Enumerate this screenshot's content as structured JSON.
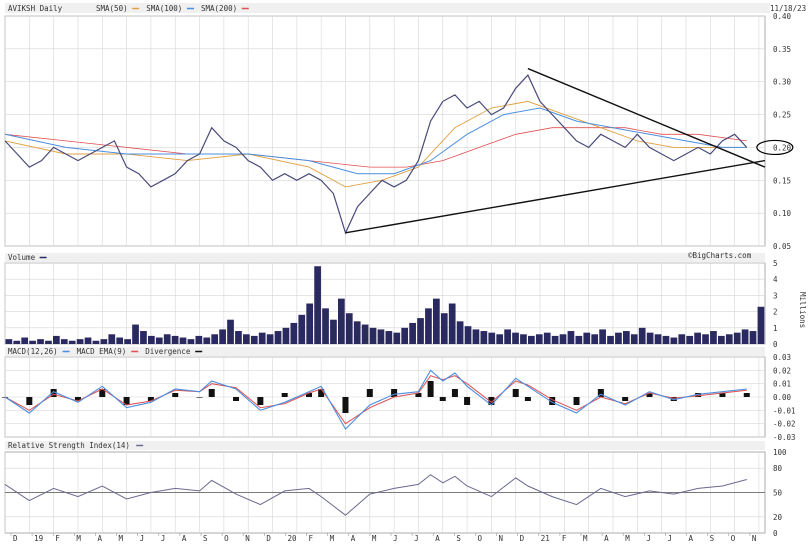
{
  "header": {
    "symbol_label": "AVIKSH Daily",
    "date": "11/18/23",
    "watermark": "©BigCharts.com"
  },
  "colors": {
    "price": "#4a4a7a",
    "sma50": "#e0a040",
    "sma100": "#4b8fe0",
    "sma200": "#e05050",
    "volume": "#2a2a60",
    "macd": "#4b8fe0",
    "macd_ema": "#e05050",
    "divergence": "#111111",
    "rsi": "#6a6a90",
    "trendline": "#111111",
    "grid": "#d6d6d6"
  },
  "chart_data": [
    {
      "type": "line",
      "panel": "price",
      "legend": [
        "AVIKSH Daily",
        "SMA(50)",
        "SMA(100)",
        "SMA(200)"
      ],
      "ylim": [
        0.05,
        0.4
      ],
      "yticks": [
        "0.40",
        "0.35",
        "0.30",
        "0.25",
        "0.20",
        "0.15",
        "0.10",
        "0.05"
      ],
      "x_labels": [
        "D",
        "19",
        "F",
        "M",
        "A",
        "M",
        "J",
        "J",
        "A",
        "S",
        "O",
        "N",
        "D",
        "20",
        "F",
        "M",
        "A",
        "M",
        "J",
        "J",
        "A",
        "S",
        "O",
        "N",
        "D",
        "21",
        "F",
        "M",
        "A",
        "M",
        "J",
        "J",
        "A",
        "S",
        "O",
        "N"
      ],
      "price_points": [
        [
          0,
          0.21
        ],
        [
          2,
          0.19
        ],
        [
          4,
          0.17
        ],
        [
          6,
          0.18
        ],
        [
          8,
          0.2
        ],
        [
          10,
          0.19
        ],
        [
          12,
          0.18
        ],
        [
          14,
          0.19
        ],
        [
          16,
          0.2
        ],
        [
          18,
          0.21
        ],
        [
          20,
          0.17
        ],
        [
          22,
          0.16
        ],
        [
          24,
          0.14
        ],
        [
          26,
          0.15
        ],
        [
          28,
          0.16
        ],
        [
          30,
          0.18
        ],
        [
          32,
          0.19
        ],
        [
          34,
          0.23
        ],
        [
          36,
          0.21
        ],
        [
          38,
          0.2
        ],
        [
          40,
          0.18
        ],
        [
          42,
          0.17
        ],
        [
          44,
          0.15
        ],
        [
          46,
          0.16
        ],
        [
          48,
          0.15
        ],
        [
          50,
          0.16
        ],
        [
          52,
          0.15
        ],
        [
          54,
          0.13
        ],
        [
          55,
          0.1
        ],
        [
          56,
          0.07
        ],
        [
          58,
          0.11
        ],
        [
          60,
          0.13
        ],
        [
          62,
          0.15
        ],
        [
          64,
          0.14
        ],
        [
          66,
          0.15
        ],
        [
          68,
          0.18
        ],
        [
          70,
          0.24
        ],
        [
          72,
          0.27
        ],
        [
          74,
          0.28
        ],
        [
          76,
          0.26
        ],
        [
          78,
          0.27
        ],
        [
          80,
          0.25
        ],
        [
          82,
          0.26
        ],
        [
          84,
          0.29
        ],
        [
          86,
          0.31
        ],
        [
          88,
          0.27
        ],
        [
          90,
          0.25
        ],
        [
          92,
          0.23
        ],
        [
          94,
          0.21
        ],
        [
          96,
          0.2
        ],
        [
          98,
          0.22
        ],
        [
          100,
          0.21
        ],
        [
          102,
          0.2
        ],
        [
          104,
          0.22
        ],
        [
          106,
          0.2
        ],
        [
          108,
          0.19
        ],
        [
          110,
          0.18
        ],
        [
          112,
          0.19
        ],
        [
          114,
          0.2
        ],
        [
          116,
          0.19
        ],
        [
          118,
          0.21
        ],
        [
          120,
          0.22
        ],
        [
          122,
          0.2
        ]
      ],
      "sma50": [
        [
          0,
          0.21
        ],
        [
          10,
          0.19
        ],
        [
          20,
          0.19
        ],
        [
          30,
          0.18
        ],
        [
          40,
          0.19
        ],
        [
          50,
          0.17
        ],
        [
          56,
          0.14
        ],
        [
          62,
          0.15
        ],
        [
          68,
          0.17
        ],
        [
          74,
          0.23
        ],
        [
          80,
          0.26
        ],
        [
          86,
          0.27
        ],
        [
          92,
          0.25
        ],
        [
          98,
          0.23
        ],
        [
          104,
          0.21
        ],
        [
          110,
          0.2
        ],
        [
          116,
          0.2
        ],
        [
          122,
          0.2
        ]
      ],
      "sma100": [
        [
          0,
          0.22
        ],
        [
          10,
          0.2
        ],
        [
          20,
          0.19
        ],
        [
          30,
          0.19
        ],
        [
          40,
          0.19
        ],
        [
          50,
          0.18
        ],
        [
          58,
          0.16
        ],
        [
          64,
          0.16
        ],
        [
          70,
          0.18
        ],
        [
          76,
          0.22
        ],
        [
          82,
          0.25
        ],
        [
          88,
          0.26
        ],
        [
          94,
          0.24
        ],
        [
          100,
          0.23
        ],
        [
          106,
          0.22
        ],
        [
          112,
          0.21
        ],
        [
          118,
          0.2
        ],
        [
          122,
          0.2
        ]
      ],
      "sma200": [
        [
          0,
          0.22
        ],
        [
          10,
          0.21
        ],
        [
          20,
          0.2
        ],
        [
          30,
          0.19
        ],
        [
          40,
          0.19
        ],
        [
          50,
          0.18
        ],
        [
          60,
          0.17
        ],
        [
          66,
          0.17
        ],
        [
          72,
          0.18
        ],
        [
          78,
          0.2
        ],
        [
          84,
          0.22
        ],
        [
          90,
          0.23
        ],
        [
          96,
          0.23
        ],
        [
          102,
          0.23
        ],
        [
          108,
          0.22
        ],
        [
          114,
          0.22
        ],
        [
          122,
          0.21
        ]
      ],
      "trendlines": [
        [
          [
            56,
            0.07
          ],
          [
            125,
            0.18
          ]
        ],
        [
          [
            86,
            0.32
          ],
          [
            125,
            0.17
          ]
        ]
      ],
      "annotation_circle": [
        123,
        0.2
      ]
    },
    {
      "type": "bar",
      "panel": "volume",
      "legend": [
        "Volume"
      ],
      "ylim": [
        0,
        5
      ],
      "yticks": [
        "5",
        "4",
        "3",
        "2",
        "1",
        "0"
      ],
      "ylabel": "Millions",
      "values": [
        0.3,
        0.2,
        0.4,
        0.2,
        0.3,
        0.2,
        0.5,
        0.3,
        0.2,
        0.3,
        0.4,
        0.2,
        0.3,
        0.6,
        0.4,
        0.3,
        1.2,
        0.8,
        0.5,
        0.4,
        0.6,
        0.5,
        0.4,
        0.3,
        0.5,
        0.4,
        0.6,
        0.9,
        1.5,
        0.8,
        0.6,
        0.5,
        0.7,
        0.6,
        0.8,
        1.0,
        1.3,
        1.8,
        2.5,
        4.8,
        2.2,
        1.5,
        2.8,
        1.9,
        1.4,
        1.2,
        1.0,
        0.9,
        0.8,
        0.7,
        1.0,
        1.3,
        1.6,
        2.2,
        2.8,
        1.9,
        2.5,
        1.4,
        1.1,
        0.9,
        0.8,
        0.7,
        0.6,
        0.9,
        0.7,
        0.6,
        0.5,
        0.6,
        0.7,
        0.5,
        0.6,
        0.8,
        0.5,
        0.7,
        0.6,
        0.9,
        0.5,
        0.7,
        0.8,
        0.6,
        1.0,
        0.7,
        0.6,
        0.5,
        0.4,
        0.6,
        0.5,
        0.7,
        0.6,
        0.8,
        0.5,
        0.6,
        0.7,
        0.9,
        0.8,
        2.3
      ]
    },
    {
      "type": "line",
      "panel": "macd",
      "legend": [
        "MACD(12,26)",
        "MACD EMA(9)",
        "Divergence"
      ],
      "ylim": [
        -0.03,
        0.03
      ],
      "yticks": [
        "0.03",
        "0.02",
        "0.01",
        "0.00",
        "-0.01",
        "-0.02",
        "-0.03"
      ],
      "macd": [
        [
          0,
          0.0
        ],
        [
          4,
          -0.012
        ],
        [
          8,
          0.004
        ],
        [
          12,
          -0.004
        ],
        [
          16,
          0.008
        ],
        [
          20,
          -0.008
        ],
        [
          24,
          -0.004
        ],
        [
          28,
          0.006
        ],
        [
          32,
          0.004
        ],
        [
          34,
          0.012
        ],
        [
          38,
          0.006
        ],
        [
          42,
          -0.01
        ],
        [
          46,
          -0.004
        ],
        [
          50,
          0.004
        ],
        [
          52,
          0.008
        ],
        [
          56,
          -0.024
        ],
        [
          60,
          -0.006
        ],
        [
          64,
          0.002
        ],
        [
          68,
          0.004
        ],
        [
          70,
          0.02
        ],
        [
          72,
          0.012
        ],
        [
          74,
          0.018
        ],
        [
          76,
          0.008
        ],
        [
          80,
          -0.006
        ],
        [
          84,
          0.014
        ],
        [
          86,
          0.008
        ],
        [
          90,
          -0.004
        ],
        [
          94,
          -0.012
        ],
        [
          98,
          0.002
        ],
        [
          102,
          -0.006
        ],
        [
          106,
          0.004
        ],
        [
          110,
          -0.002
        ],
        [
          114,
          0.002
        ],
        [
          118,
          0.004
        ],
        [
          122,
          0.006
        ]
      ],
      "macd_ema": [
        [
          0,
          0.0
        ],
        [
          4,
          -0.01
        ],
        [
          8,
          0.002
        ],
        [
          12,
          -0.003
        ],
        [
          16,
          0.006
        ],
        [
          20,
          -0.006
        ],
        [
          24,
          -0.003
        ],
        [
          28,
          0.005
        ],
        [
          32,
          0.004
        ],
        [
          34,
          0.01
        ],
        [
          38,
          0.007
        ],
        [
          42,
          -0.008
        ],
        [
          46,
          -0.005
        ],
        [
          50,
          0.003
        ],
        [
          52,
          0.006
        ],
        [
          56,
          -0.02
        ],
        [
          60,
          -0.008
        ],
        [
          64,
          0.0
        ],
        [
          68,
          0.003
        ],
        [
          70,
          0.016
        ],
        [
          72,
          0.013
        ],
        [
          74,
          0.016
        ],
        [
          76,
          0.01
        ],
        [
          80,
          -0.004
        ],
        [
          84,
          0.012
        ],
        [
          86,
          0.009
        ],
        [
          90,
          -0.002
        ],
        [
          94,
          -0.01
        ],
        [
          98,
          0.0
        ],
        [
          102,
          -0.005
        ],
        [
          106,
          0.003
        ],
        [
          110,
          -0.001
        ],
        [
          114,
          0.001
        ],
        [
          118,
          0.003
        ],
        [
          122,
          0.005
        ]
      ]
    },
    {
      "type": "line",
      "panel": "rsi",
      "legend": [
        "Relative Strength Index(14)"
      ],
      "ylim": [
        0,
        100
      ],
      "yticks": [
        "80",
        "50",
        "20"
      ],
      "y_axis_labels": [
        "100",
        "80",
        "50",
        "20",
        "0"
      ],
      "values": [
        [
          0,
          60
        ],
        [
          4,
          40
        ],
        [
          8,
          55
        ],
        [
          12,
          45
        ],
        [
          16,
          58
        ],
        [
          20,
          42
        ],
        [
          24,
          50
        ],
        [
          28,
          55
        ],
        [
          32,
          52
        ],
        [
          34,
          65
        ],
        [
          38,
          48
        ],
        [
          42,
          35
        ],
        [
          46,
          52
        ],
        [
          50,
          55
        ],
        [
          52,
          45
        ],
        [
          56,
          22
        ],
        [
          60,
          48
        ],
        [
          64,
          55
        ],
        [
          68,
          60
        ],
        [
          70,
          72
        ],
        [
          72,
          62
        ],
        [
          74,
          70
        ],
        [
          76,
          58
        ],
        [
          80,
          45
        ],
        [
          84,
          68
        ],
        [
          86,
          58
        ],
        [
          90,
          45
        ],
        [
          94,
          35
        ],
        [
          98,
          55
        ],
        [
          102,
          45
        ],
        [
          106,
          52
        ],
        [
          110,
          48
        ],
        [
          114,
          55
        ],
        [
          118,
          58
        ],
        [
          122,
          66
        ]
      ]
    }
  ]
}
